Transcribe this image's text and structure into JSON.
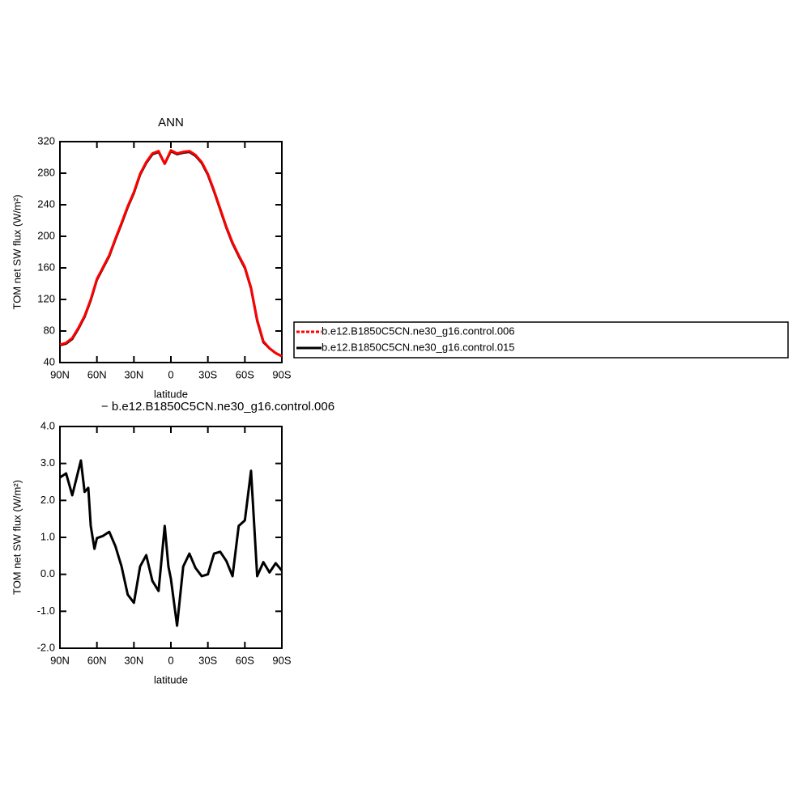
{
  "chart_data": [
    {
      "type": "line",
      "title": "ANN",
      "xlabel": "latitude",
      "ylabel": "TOM net SW flux (W/m²)",
      "x": [
        90,
        85,
        80,
        75,
        70,
        65,
        60,
        55,
        50,
        45,
        40,
        35,
        30,
        25,
        20,
        15,
        10,
        5,
        0,
        -5,
        -10,
        -15,
        -20,
        -25,
        -30,
        -35,
        -40,
        -45,
        -50,
        -55,
        -60,
        -65,
        -70,
        -75,
        -80,
        -85,
        -90
      ],
      "series": [
        {
          "name": "b.e12.B1850C5CN.ne30_g16.control.006",
          "color": "#ff0000",
          "line_style": "dashed",
          "values": [
            62.6,
            65,
            71,
            84,
            99,
            120,
            146,
            161,
            176,
            197,
            217,
            238,
            256,
            279,
            294,
            305,
            308,
            292,
            309,
            305,
            307,
            308,
            303,
            294,
            279,
            258,
            235,
            212,
            192,
            176,
            161,
            135,
            94,
            67,
            58,
            52,
            48
          ]
        },
        {
          "name": "b.e12.B1850C5CN.ne30_g16.control.015",
          "color": "#000000",
          "line_style": "solid",
          "values": [
            62,
            64,
            70,
            83,
            98,
            119,
            145,
            160,
            175,
            196,
            216,
            237,
            255,
            278,
            293,
            304,
            307,
            292,
            308,
            304,
            306,
            307,
            302,
            293,
            278,
            257,
            234,
            211,
            191,
            175,
            160,
            134,
            93,
            66,
            58,
            52,
            48
          ]
        }
      ],
      "xlim": [
        90,
        -90
      ],
      "xticks": [
        {
          "value": 90,
          "label": "90N"
        },
        {
          "value": 60,
          "label": "60N"
        },
        {
          "value": 30,
          "label": "30N"
        },
        0,
        {
          "value": -30,
          "label": "30S"
        },
        {
          "value": -60,
          "label": "60S"
        },
        {
          "value": -90,
          "label": "90S"
        }
      ],
      "ylim": [
        40,
        320
      ],
      "yticks": [
        40,
        80,
        120,
        160,
        200,
        240,
        280,
        320
      ]
    },
    {
      "type": "line",
      "title": "− b.e12.B1850C5CN.ne30_g16.control.006",
      "xlabel": "latitude",
      "ylabel": "TOM net SW flux (W/m²)",
      "x": [
        90,
        85,
        80,
        73,
        70,
        67,
        65,
        62,
        60,
        55,
        50,
        45,
        40,
        35,
        30,
        25,
        20,
        15,
        10,
        5,
        2,
        0,
        -5,
        -10,
        -15,
        -20,
        -25,
        -30,
        -35,
        -40,
        -45,
        -50,
        -55,
        -60,
        -65,
        -70,
        -75,
        -80,
        -85,
        -90
      ],
      "color": "#000000",
      "values": [
        2.62,
        2.73,
        2.14,
        3.08,
        2.23,
        2.34,
        1.31,
        0.69,
        0.98,
        1.04,
        1.15,
        0.76,
        0.21,
        -0.55,
        -0.77,
        0.21,
        0.52,
        -0.18,
        -0.45,
        1.31,
        0.21,
        -0.12,
        -1.39,
        0.21,
        0.56,
        0.17,
        -0.05,
        0,
        0.56,
        0.61,
        0.36,
        -0.05,
        1.31,
        1.46,
        2.8,
        -0.05,
        0.33,
        0.05,
        0.3,
        0.1
      ],
      "xlim": [
        90,
        -90
      ],
      "xticks": [
        {
          "value": 90,
          "label": "90N"
        },
        {
          "value": 60,
          "label": "60N"
        },
        {
          "value": 30,
          "label": "30N"
        },
        0,
        {
          "value": -30,
          "label": "30S"
        },
        {
          "value": -60,
          "label": "60S"
        },
        {
          "value": -90,
          "label": "90S"
        }
      ],
      "ylim": [
        -2,
        4
      ],
      "yticks": [
        {
          "value": -2,
          "label": "-2.0"
        },
        {
          "value": -1,
          "label": "-1.0"
        },
        {
          "value": 0,
          "label": "0.0"
        },
        {
          "value": 1,
          "label": "1.0"
        },
        {
          "value": 2,
          "label": "2.0"
        },
        {
          "value": 3,
          "label": "3.0"
        },
        {
          "value": 4,
          "label": "4.0"
        }
      ]
    }
  ]
}
